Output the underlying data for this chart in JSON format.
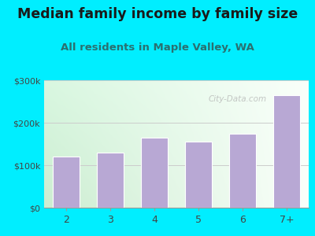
{
  "title": "Median family income by family size",
  "subtitle": "All residents in Maple Valley, WA",
  "categories": [
    "2",
    "3",
    "4",
    "5",
    "6",
    "7+"
  ],
  "values": [
    120000,
    130000,
    165000,
    155000,
    175000,
    265000
  ],
  "bar_color": "#b8a8d4",
  "background_outer": "#00eeff",
  "grid_color": "#cccccc",
  "title_color": "#1a1a1a",
  "subtitle_color": "#2a7070",
  "tick_color": "#444444",
  "ylim": [
    0,
    300000
  ],
  "yticks": [
    0,
    100000,
    200000,
    300000
  ],
  "ytick_labels": [
    "$0",
    "$100k",
    "$200k",
    "$300k"
  ],
  "watermark": "City-Data.com",
  "title_fontsize": 12.5,
  "subtitle_fontsize": 9.5
}
